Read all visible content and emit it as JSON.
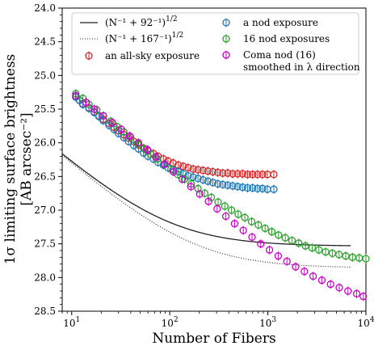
{
  "chart_data": {
    "type": "scatter",
    "xlabel": "Number of Fibers",
    "ylabel_line1": "1σ limiting surface brightness",
    "ylabel_line2": "[AB arcsec⁻²]",
    "x_scale": "log",
    "xlim": [
      8,
      10000
    ],
    "ylim": [
      28.5,
      24.0
    ],
    "y_inverted": true,
    "x_ticks": [
      {
        "value": 10,
        "base": "10",
        "exp": "1"
      },
      {
        "value": 100,
        "base": "10",
        "exp": "2"
      },
      {
        "value": 1000,
        "base": "10",
        "exp": "3"
      },
      {
        "value": 10000,
        "base": "10",
        "exp": "4"
      }
    ],
    "y_ticks": [
      "24.0",
      "24.5",
      "25.0",
      "25.5",
      "26.0",
      "26.5",
      "27.0",
      "27.5",
      "28.0",
      "28.5"
    ],
    "grid": false,
    "legend_position": "top",
    "curves": [
      {
        "label": "(N⁻¹ + 92⁻¹)^{1/2}",
        "label_main": "(N⁻¹ + 92⁻¹)",
        "label_sup": "1/2",
        "style": "solid",
        "N0": 92,
        "m1": 25.08,
        "x_range": [
          8,
          7000
        ],
        "color": "#222222"
      },
      {
        "label": "(N⁻¹ + 167⁻¹)^{1/2}",
        "label_main": "(N⁻¹ + 167⁻¹)",
        "label_sup": "1/2",
        "style": "dotted",
        "N0": 167,
        "m1": 25.08,
        "x_range": [
          8,
          7000
        ],
        "color": "#222222"
      }
    ],
    "series": [
      {
        "name": "an all-sky exposure",
        "color": "#d62728",
        "x": [
          11,
          12,
          13,
          15,
          17,
          19,
          21,
          24,
          27,
          30,
          34,
          38,
          43,
          48,
          54,
          60,
          68,
          76,
          86,
          96,
          108,
          122,
          137,
          154,
          173,
          194,
          218,
          245,
          275,
          309,
          347,
          390,
          438,
          492,
          553,
          621,
          698,
          784,
          880,
          989,
          1150
        ],
        "y": [
          25.32,
          25.37,
          25.42,
          25.48,
          25.54,
          25.6,
          25.65,
          25.71,
          25.77,
          25.82,
          25.88,
          25.93,
          25.98,
          26.03,
          26.08,
          26.12,
          26.16,
          26.2,
          26.24,
          26.27,
          26.3,
          26.33,
          26.35,
          26.37,
          26.39,
          26.4,
          26.41,
          26.42,
          26.43,
          26.44,
          26.45,
          26.45,
          26.46,
          26.46,
          26.46,
          26.47,
          26.47,
          26.47,
          26.47,
          26.47,
          26.47
        ]
      },
      {
        "name": "a nod exposure",
        "color": "#1f77b4",
        "x": [
          11,
          12,
          13,
          15,
          17,
          19,
          21,
          24,
          27,
          30,
          34,
          38,
          43,
          48,
          54,
          60,
          68,
          76,
          86,
          96,
          108,
          122,
          137,
          154,
          173,
          194,
          218,
          245,
          275,
          309,
          347,
          390,
          438,
          492,
          553,
          621,
          698,
          784,
          880,
          989,
          1150
        ],
        "y": [
          25.32,
          25.37,
          25.43,
          25.49,
          25.55,
          25.61,
          25.67,
          25.74,
          25.8,
          25.86,
          25.92,
          25.98,
          26.04,
          26.09,
          26.15,
          26.2,
          26.24,
          26.29,
          26.33,
          26.37,
          26.4,
          26.43,
          26.46,
          26.49,
          26.51,
          26.53,
          26.55,
          26.57,
          26.59,
          26.61,
          26.62,
          26.63,
          26.64,
          26.65,
          26.66,
          26.67,
          26.67,
          26.68,
          26.68,
          26.69,
          26.69
        ]
      },
      {
        "name": "16 nod exposures",
        "color": "#2ca02c",
        "x": [
          11,
          13,
          15,
          18,
          21,
          25,
          29,
          34,
          40,
          47,
          55,
          64,
          75,
          88,
          103,
          121,
          141,
          165,
          194,
          227,
          265,
          311,
          364,
          426,
          498,
          583,
          683,
          800,
          937,
          1097,
          1285,
          1505,
          1762,
          2063,
          2416,
          2829,
          3313,
          3880,
          4543,
          5320,
          6230,
          7295,
          8543,
          10000
        ],
        "y": [
          25.27,
          25.34,
          25.43,
          25.51,
          25.6,
          25.68,
          25.76,
          25.84,
          25.92,
          26.01,
          26.09,
          26.17,
          26.24,
          26.32,
          26.39,
          26.47,
          26.54,
          26.61,
          26.68,
          26.75,
          26.81,
          26.88,
          26.94,
          27.0,
          27.06,
          27.11,
          27.17,
          27.22,
          27.27,
          27.32,
          27.37,
          27.41,
          27.45,
          27.49,
          27.53,
          27.56,
          27.59,
          27.62,
          27.64,
          27.66,
          27.68,
          27.7,
          27.71,
          27.72
        ]
      },
      {
        "name": "Coma nod (16) smoothed in λ direction",
        "name_line1": "Coma nod (16)",
        "name_line2": "smoothed in λ direction",
        "color": "#cc00cc",
        "x": [
          11,
          14,
          17,
          21,
          26,
          32,
          39,
          48,
          59,
          72,
          89,
          109,
          134,
          164,
          202,
          248,
          304,
          373,
          458,
          562,
          690,
          846,
          1039,
          1275,
          1565,
          1920,
          2357,
          2893,
          3550,
          4357,
          5348,
          6563,
          8050,
          9400
        ],
        "y": [
          25.3,
          25.4,
          25.5,
          25.6,
          25.7,
          25.8,
          25.9,
          26.0,
          26.1,
          26.21,
          26.32,
          26.43,
          26.54,
          26.65,
          26.76,
          26.87,
          26.98,
          27.09,
          27.2,
          27.3,
          27.4,
          27.5,
          27.59,
          27.68,
          27.76,
          27.84,
          27.91,
          27.98,
          28.04,
          28.1,
          28.15,
          28.2,
          28.24,
          28.28
        ]
      }
    ]
  }
}
